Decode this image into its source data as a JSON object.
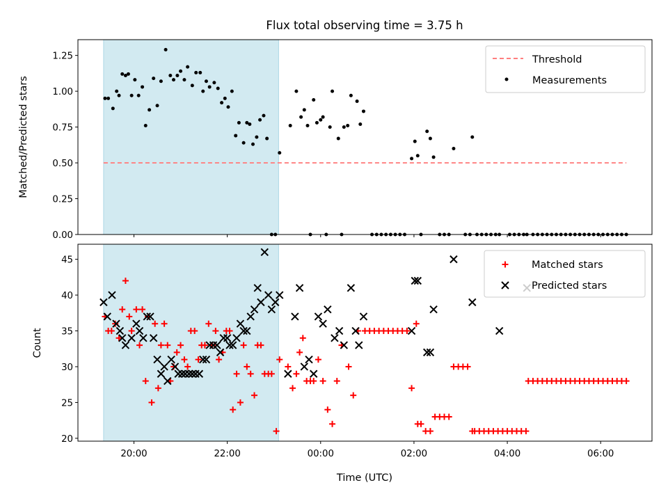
{
  "chart_data": [
    {
      "type": "scatter",
      "title": "Flux total observing time = 3.75 h",
      "xlabel": "",
      "ylabel": "Matched/Predicted stars",
      "ylim": [
        0,
        1.36
      ],
      "yticks": [
        "0.00",
        "0.25",
        "0.50",
        "0.75",
        "1.00",
        "1.25"
      ],
      "x_unit": "hours relative to 00:00 UTC",
      "x_range": [
        -5.2,
        7.1
      ],
      "shaded_span": [
        -4.65,
        -0.9
      ],
      "shaded_color": "#add8e6",
      "legend_position": "top-right",
      "threshold": {
        "name": "Threshold",
        "value": 0.5,
        "x": [
          -4.65,
          6.55
        ],
        "color": "#ff7f7f"
      },
      "series": [
        {
          "name": "Measurements",
          "color": "#000000",
          "marker": "dot",
          "x": [
            -4.62,
            -4.55,
            -4.45,
            -4.37,
            -4.32,
            -4.25,
            -4.18,
            -4.12,
            -4.05,
            -3.98,
            -3.9,
            -3.82,
            -3.75,
            -3.67,
            -3.58,
            -3.5,
            -3.42,
            -3.32,
            -3.22,
            -3.15,
            -3.07,
            -3.0,
            -2.92,
            -2.85,
            -2.75,
            -2.67,
            -2.58,
            -2.52,
            -2.45,
            -2.38,
            -2.28,
            -2.2,
            -2.12,
            -2.05,
            -1.98,
            -1.9,
            -1.82,
            -1.75,
            -1.65,
            -1.58,
            -1.52,
            -1.45,
            -1.37,
            -1.3,
            -1.22,
            -1.15,
            -1.05,
            -0.97,
            -0.88,
            -0.65,
            -0.52,
            -0.42,
            -0.35,
            -0.28,
            -0.22,
            -0.15,
            -0.08,
            0.0,
            0.05,
            0.12,
            0.2,
            0.25,
            0.38,
            0.45,
            0.5,
            0.58,
            0.65,
            0.78,
            0.85,
            0.92,
            1.95,
            2.02,
            2.08,
            2.28,
            2.35,
            2.42,
            2.85,
            3.25,
            3.83,
            4.42
          ],
          "y": [
            0.95,
            0.95,
            0.88,
            1.0,
            0.97,
            1.12,
            1.11,
            1.12,
            0.97,
            1.08,
            0.97,
            1.03,
            0.76,
            0.87,
            1.09,
            0.9,
            1.07,
            1.29,
            1.11,
            1.08,
            1.11,
            1.14,
            1.08,
            1.17,
            1.04,
            1.13,
            1.13,
            1.0,
            1.07,
            1.03,
            1.06,
            1.02,
            0.92,
            0.95,
            0.89,
            1.0,
            0.69,
            0.78,
            0.64,
            0.78,
            0.77,
            0.63,
            0.68,
            0.8,
            0.83,
            0.67,
            0.0,
            0.0,
            0.57,
            0.76,
            1.0,
            0.82,
            0.87,
            0.76,
            0.0,
            0.94,
            0.78,
            0.8,
            0.82,
            0.0,
            0.75,
            1.0,
            0.67,
            0.0,
            0.75,
            0.76,
            0.97,
            0.93,
            0.77,
            0.86,
            0.53,
            0.65,
            0.55,
            0.72,
            0.67,
            0.54,
            0.6,
            0.68,
            0.0,
            0.0
          ]
        },
        {
          "name": "",
          "color": "#000000",
          "marker": "dot",
          "x": [
            1.1,
            1.2,
            1.3,
            1.4,
            1.5,
            1.6,
            1.7,
            1.8,
            2.15,
            2.55,
            2.65,
            2.75,
            3.1,
            3.2,
            3.35,
            3.45,
            3.55,
            3.65,
            3.75,
            4.05,
            4.15,
            4.25,
            4.35,
            4.55,
            4.65,
            4.75,
            4.85,
            4.95,
            5.05,
            5.15,
            5.25,
            5.35,
            5.45,
            5.55,
            5.65,
            5.75,
            5.85,
            5.95,
            6.05,
            6.15,
            6.25,
            6.35,
            6.45,
            6.55
          ],
          "y": [
            0,
            0,
            0,
            0,
            0,
            0,
            0,
            0,
            0,
            0,
            0,
            0,
            0,
            0,
            0,
            0,
            0,
            0,
            0,
            0,
            0,
            0,
            0,
            0,
            0,
            0,
            0,
            0,
            0,
            0,
            0,
            0,
            0,
            0,
            0,
            0,
            0,
            0,
            0,
            0,
            0,
            0,
            0,
            0
          ]
        }
      ]
    },
    {
      "type": "scatter",
      "title": "",
      "xlabel": "Time (UTC)",
      "ylabel": "Count",
      "ylim": [
        19.6,
        47.1
      ],
      "yticks": [
        "20",
        "25",
        "30",
        "35",
        "40",
        "45"
      ],
      "xticks": {
        "values": [
          -4,
          -2,
          0,
          2,
          4,
          6
        ],
        "labels": [
          "20:00",
          "22:00",
          "00:00",
          "02:00",
          "04:00",
          "06:00"
        ]
      },
      "x_unit": "hours relative to 00:00 UTC",
      "x_range": [
        -5.2,
        7.1
      ],
      "shaded_span": [
        -4.65,
        -0.9
      ],
      "shaded_color": "#add8e6",
      "legend_position": "top-right",
      "series": [
        {
          "name": "Matched stars",
          "color": "#ff0000",
          "marker": "plus",
          "x": [
            -4.62,
            -4.55,
            -4.48,
            -4.4,
            -4.32,
            -4.25,
            -4.18,
            -4.1,
            -4.05,
            -3.95,
            -3.88,
            -3.82,
            -3.75,
            -3.7,
            -3.62,
            -3.55,
            -3.48,
            -3.42,
            -3.35,
            -3.28,
            -3.22,
            -3.15,
            -3.08,
            -3.0,
            -2.92,
            -2.85,
            -2.78,
            -2.7,
            -2.62,
            -2.55,
            -2.48,
            -2.4,
            -2.32,
            -2.25,
            -2.18,
            -2.1,
            -2.02,
            -1.95,
            -1.88,
            -1.8,
            -1.72,
            -1.65,
            -1.58,
            -1.5,
            -1.42,
            -1.35,
            -1.28,
            -1.2,
            -1.12,
            -1.05,
            -0.95,
            -0.88,
            -0.7,
            -0.6,
            -0.52,
            -0.45,
            -0.38,
            -0.3,
            -0.22,
            -0.15,
            -0.05,
            0.05,
            0.15,
            0.25,
            0.35,
            0.45,
            0.6,
            0.7,
            0.8
          ],
          "y": [
            37,
            35,
            35,
            36,
            34,
            38,
            42,
            37,
            35,
            38,
            33,
            38,
            28,
            37,
            25,
            36,
            27,
            33,
            36,
            33,
            28,
            30,
            32,
            33,
            31,
            30,
            35,
            35,
            31,
            33,
            33,
            36,
            33,
            35,
            31,
            32,
            35,
            35,
            24,
            29,
            25,
            33,
            30,
            29,
            26,
            33,
            33,
            29,
            29,
            29,
            21,
            31,
            30,
            27,
            29,
            32,
            34,
            28,
            28,
            28,
            31,
            28,
            24,
            22,
            28,
            33,
            30,
            26,
            35
          ]
        },
        {
          "name": "",
          "color": "#ff0000",
          "marker": "plus",
          "x": [
            0.95,
            1.05,
            1.15,
            1.25,
            1.35,
            1.45,
            1.55,
            1.65,
            1.75,
            1.85,
            1.95,
            2.05,
            2.08,
            2.15,
            2.25,
            2.35,
            2.45,
            2.55,
            2.65,
            2.75,
            2.85,
            2.95,
            3.05,
            3.15,
            3.25,
            3.3,
            3.4,
            3.5,
            3.6,
            3.7,
            3.8,
            3.9,
            4.0,
            4.1,
            4.2,
            4.3,
            4.4,
            4.45,
            4.55,
            4.65,
            4.75,
            4.85,
            4.95,
            5.05,
            5.15,
            5.25,
            5.35,
            5.45,
            5.55,
            5.65,
            5.75,
            5.85,
            5.95,
            6.05,
            6.15,
            6.25,
            6.35,
            6.45,
            6.55
          ],
          "y": [
            35,
            35,
            35,
            35,
            35,
            35,
            35,
            35,
            35,
            35,
            27,
            36,
            22,
            22,
            21,
            21,
            23,
            23,
            23,
            23,
            30,
            30,
            30,
            30,
            21,
            21,
            21,
            21,
            21,
            21,
            21,
            21,
            21,
            21,
            21,
            21,
            21,
            28,
            28,
            28,
            28,
            28,
            28,
            28,
            28,
            28,
            28,
            28,
            28,
            28,
            28,
            28,
            28,
            28,
            28,
            28,
            28,
            28,
            28
          ]
        },
        {
          "name": "Predicted stars",
          "color": "#000000",
          "marker": "x",
          "x": [
            -4.65,
            -4.57,
            -4.47,
            -4.38,
            -4.3,
            -4.25,
            -4.18,
            -4.05,
            -3.95,
            -3.88,
            -3.8,
            -3.72,
            -3.65,
            -3.58,
            -3.5,
            -3.42,
            -3.35,
            -3.28,
            -3.2,
            -3.12,
            -3.05,
            -2.97,
            -2.9,
            -2.82,
            -2.75,
            -2.68,
            -2.6,
            -2.52,
            -2.45,
            -2.38,
            -2.3,
            -2.22,
            -2.15,
            -2.08,
            -2.0,
            -1.95,
            -1.88,
            -1.8,
            -1.72,
            -1.65,
            -1.58,
            -1.5,
            -1.42,
            -1.35,
            -1.28,
            -1.2,
            -1.12,
            -1.05,
            -0.97,
            -0.88,
            -0.7,
            -0.55,
            -0.45,
            -0.35,
            -0.25,
            -0.15,
            -0.05,
            0.05,
            0.15,
            0.3,
            0.4,
            0.5,
            0.65,
            0.75,
            0.82,
            0.92,
            1.95,
            2.02,
            2.08,
            2.28,
            2.35,
            2.42,
            2.85,
            3.25,
            3.83,
            4.42
          ],
          "y": [
            39,
            37,
            40,
            36,
            35,
            34,
            33,
            34,
            36,
            35,
            34,
            37,
            37,
            34,
            31,
            29,
            30,
            28,
            31,
            30,
            29,
            29,
            29,
            29,
            29,
            29,
            29,
            31,
            31,
            33,
            33,
            33,
            32,
            34,
            34,
            33,
            33,
            34,
            36,
            35,
            35,
            37,
            38,
            41,
            39,
            46,
            40,
            38,
            39,
            40,
            29,
            37,
            41,
            30,
            31,
            29,
            37,
            36,
            38,
            34,
            35,
            33,
            41,
            35,
            33,
            37,
            35,
            42,
            42,
            32,
            32,
            38,
            45,
            39,
            35,
            41
          ]
        }
      ]
    }
  ]
}
